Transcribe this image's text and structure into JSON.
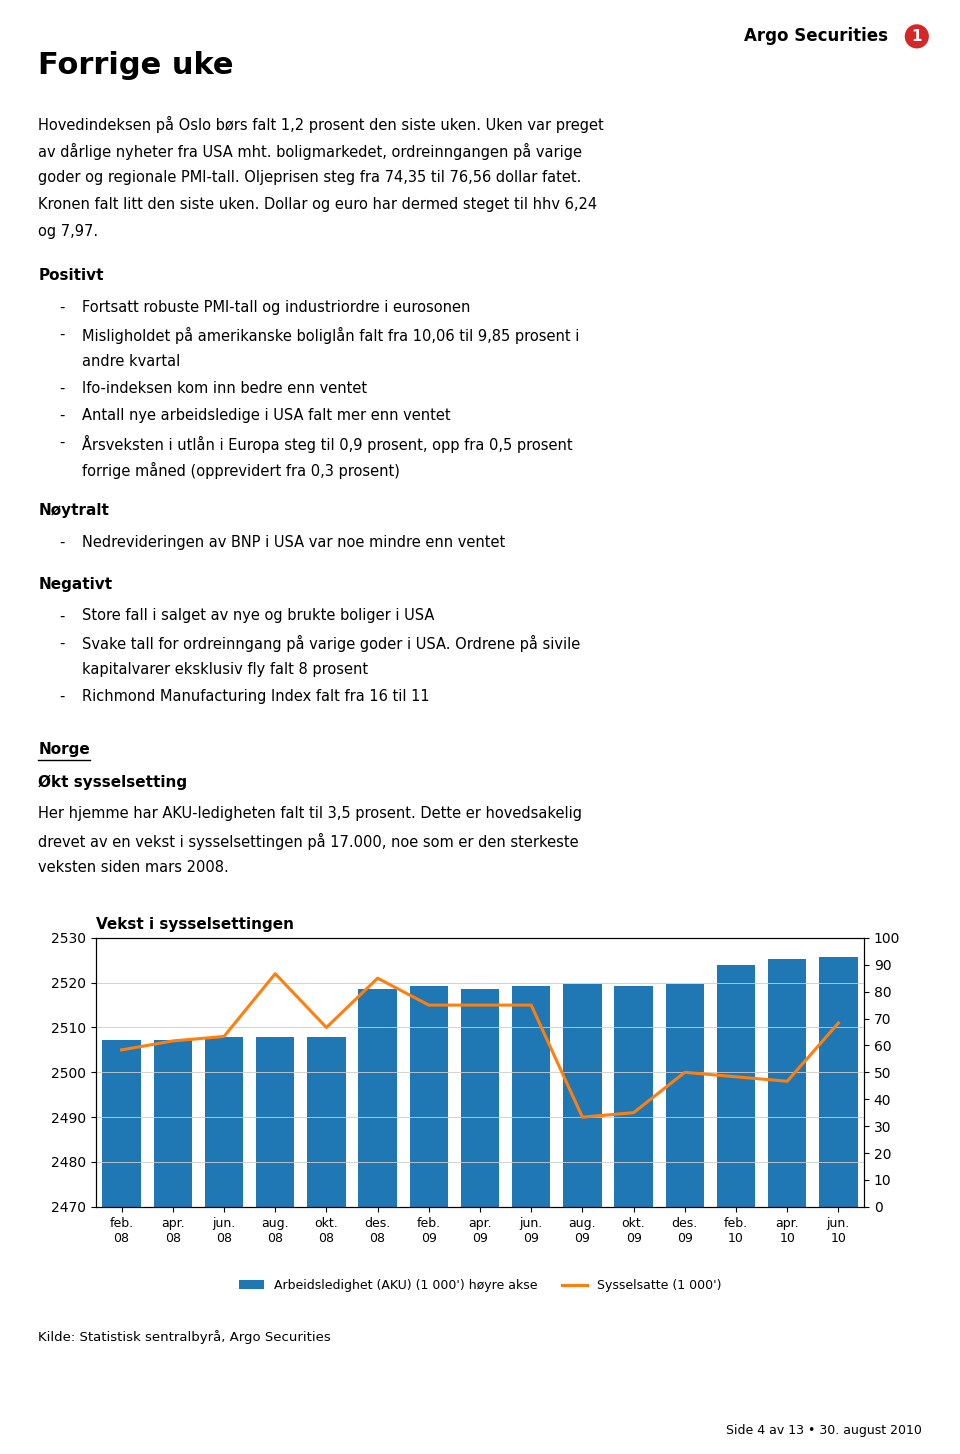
{
  "page": {
    "logo": "Argo Securities",
    "logo_mark": "1",
    "title": "Forrige uke",
    "subtitle": [
      "Hovedindeksen på Oslo børs falt 1,2 prosent den siste uken. Uken var preget",
      "av dårlige nyheter fra USA mht. boligmarkedet, ordreinngangen på varige",
      "goder og regionale PMI-tall. Oljeprisen steg fra 74,35 til 76,56 dollar fatet.",
      "Kronen falt litt den siste uken. Dollar og euro har dermed steget til hhv 6,24",
      "og 7,97."
    ],
    "bullet": "-",
    "sections": [
      {
        "heading": "Positivt",
        "items": [
          [
            "Fortsatt robuste PMI-tall og industriordre i eurosonen"
          ],
          [
            "Misligholdet på amerikanske boliglån falt fra 10,06 til 9,85 prosent i",
            "andre kvartal"
          ],
          [
            "Ifo-indeksen kom inn bedre enn ventet"
          ],
          [
            "Antall nye arbeidsledige i USA falt mer enn ventet"
          ],
          [
            "Årsveksten i utlån i Europa steg til 0,9 prosent, opp fra 0,5 prosent",
            "forrige måned (opprevidert fra 0,3 prosent)"
          ]
        ]
      },
      {
        "heading": "Nøytralt",
        "items": [
          [
            "Nedrevideringen av BNP i USA var noe mindre enn ventet"
          ]
        ]
      },
      {
        "heading": "Negativt",
        "items": [
          [
            "Store fall i salget av nye og brukte boliger i USA"
          ],
          [
            "Svake tall for ordreinngang på varige goder i USA. Ordrene på sivile",
            "kapitalvarer eksklusiv fly falt 8 prosent"
          ],
          [
            "Richmond Manufacturing Index falt fra 16 til 11"
          ]
        ]
      }
    ],
    "norge": {
      "heading": "Norge",
      "subheading": "Økt sysselsetting",
      "lines": [
        "Her hjemme har AKU-ledigheten falt til 3,5 prosent. Dette er hovedsakelig",
        "drevet av en vekst i sysselsettingen på 17.000, noe som er den sterkeste",
        "veksten siden mars 2008."
      ]
    },
    "source": "Kilde: Statistisk sentralbyrå, Argo Securities",
    "footer": "Side 4 av 13 • 30. august 2010"
  },
  "chart_data": {
    "type": "bar",
    "title": "Vekst i sysselsettingen",
    "categories": [
      "feb.\n08",
      "apr.\n08",
      "jun.\n08",
      "aug.\n08",
      "okt.\n08",
      "des.\n08",
      "feb.\n09",
      "apr.\n09",
      "jun.\n09",
      "aug.\n09",
      "okt.\n09",
      "des.\n09",
      "feb.\n10",
      "apr.\n10",
      "jun.\n10"
    ],
    "series": [
      {
        "name": "Arbeidsledighet (AKU) (1 000') høyre akse",
        "type": "bar",
        "axis": "y2",
        "values": [
          62,
          62,
          63,
          63,
          63,
          81,
          82,
          81,
          82,
          83,
          82,
          83,
          90,
          92,
          93
        ]
      },
      {
        "name": "Sysselsatte (1 000')",
        "type": "line",
        "values": [
          2505,
          2507,
          2508,
          2522,
          2510,
          2521,
          2515,
          2515,
          2515,
          2490,
          2491,
          2500,
          2499,
          2498,
          2511
        ]
      }
    ],
    "ylim": [
      2470,
      2530
    ],
    "yticks": [
      2470,
      2480,
      2490,
      2500,
      2510,
      2520,
      2530
    ],
    "y2lim": [
      0,
      100
    ],
    "y2ticks": [
      0,
      10,
      20,
      30,
      40,
      50,
      60,
      70,
      80,
      90,
      100
    ],
    "grid": true,
    "legend": "upper center"
  }
}
